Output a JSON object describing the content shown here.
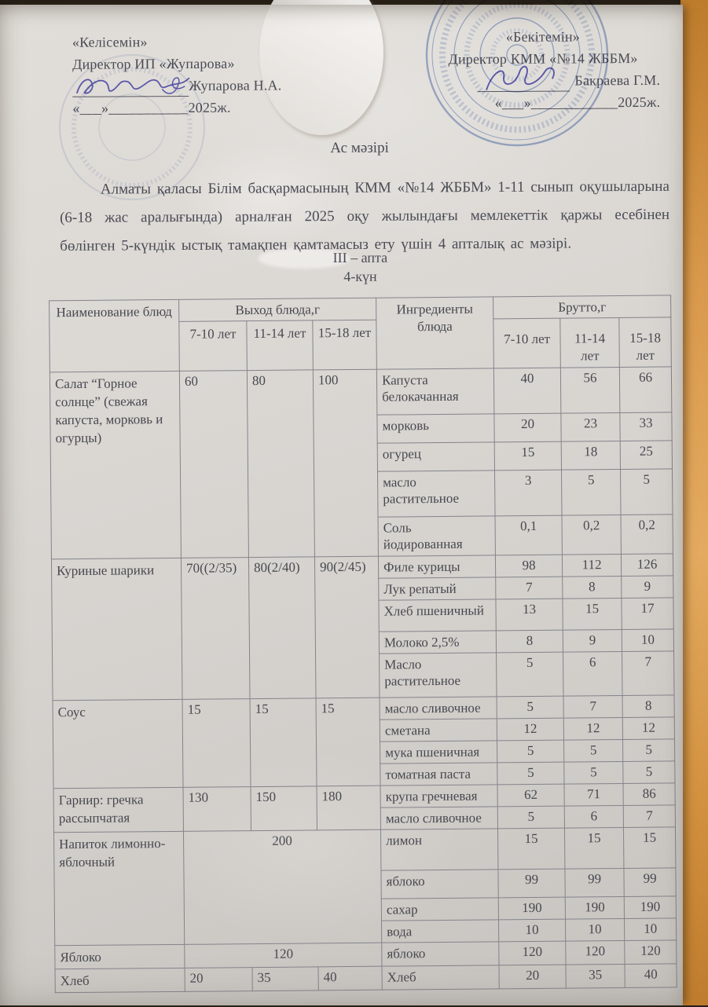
{
  "approval_left": {
    "quote": "«Келісемін»",
    "role": "Директор ИП «Жупарова»",
    "signer": "Жупарова Н.А.",
    "date_line": "«___»___________2025ж."
  },
  "approval_right": {
    "quote": "«Бекітемін»",
    "role": "Директор КММ «№14 ЖББМ»",
    "signer": "Бакраева Г.М.",
    "date_line": "«___»____________2025ж."
  },
  "title": "Ас мәзірі",
  "intro": "Алматы қаласы Білім басқармасының КММ «№14 ЖББМ» 1-11 сынып оқушыларына (6-18 жас аралығында) арналған 2025 оқу жылындағы мемлекеттік қаржы есебінен бөлінген 5-күндік ыстық тамақпен қамтамасыз ету үшін 4 апталық ас мәзірі.",
  "week_label": "III – апта",
  "day_label": "4-күн",
  "menu_table": {
    "headers": {
      "dish": "Наименование блюд",
      "output_group": "Выход блюда,г",
      "ingredients": "Ингредиенты блюда",
      "brutto_group": "Брутто,г",
      "ages": [
        "7-10 лет",
        "11-14 лет",
        "15-18 лет"
      ]
    },
    "rows": [
      {
        "dish": "Салат “Горное солнце” (свежая капуста, морковь и огурцы)",
        "output": [
          "60",
          "80",
          "100"
        ],
        "ingredients": [
          {
            "name": "Капуста белокачанная",
            "brutto": [
              "40",
              "56",
              "66"
            ]
          },
          {
            "name": "морковь",
            "brutto": [
              "20",
              "23",
              "33"
            ]
          },
          {
            "name": "огурец",
            "brutto": [
              "15",
              "18",
              "25"
            ]
          },
          {
            "name": "масло растительное",
            "brutto": [
              "3",
              "5",
              "5"
            ]
          },
          {
            "name": "Соль йодированная",
            "brutto": [
              "0,1",
              "0,2",
              "0,2"
            ]
          }
        ]
      },
      {
        "dish": "Куриные шарики",
        "output": [
          "70((2/35)",
          "80(2/40)",
          "90(2/45)"
        ],
        "ingredients": [
          {
            "name": "Филе курицы",
            "brutto": [
              "98",
              "112",
              "126"
            ]
          },
          {
            "name": "Лук репатый",
            "brutto": [
              "7",
              "8",
              "9"
            ]
          },
          {
            "name": "Хлеб пшеничный",
            "brutto": [
              "13",
              "15",
              "17"
            ]
          },
          {
            "name": "Молоко 2,5%",
            "brutto": [
              "8",
              "9",
              "10"
            ]
          },
          {
            "name": "Масло растительное",
            "brutto": [
              "5",
              "6",
              "7"
            ]
          }
        ]
      },
      {
        "dish": "Соус",
        "output": [
          "15",
          "15",
          "15"
        ],
        "ingredients": [
          {
            "name": "масло сливочное",
            "brutto": [
              "5",
              "7",
              "8"
            ]
          },
          {
            "name": "сметана",
            "brutto": [
              "12",
              "12",
              "12"
            ]
          },
          {
            "name": "мука пшеничная",
            "brutto": [
              "5",
              "5",
              "5"
            ]
          },
          {
            "name": "томатная паста",
            "brutto": [
              "5",
              "5",
              "5"
            ]
          }
        ]
      },
      {
        "dish": "Гарнир: гречка рассыпчатая",
        "output": [
          "130",
          "150",
          "180"
        ],
        "ingredients": [
          {
            "name": "крупа гречневая",
            "brutto": [
              "62",
              "71",
              "86"
            ]
          },
          {
            "name": "масло сливочное",
            "brutto": [
              "5",
              "6",
              "7"
            ]
          }
        ]
      },
      {
        "dish": "Напиток лимонно-яблочный",
        "output_span": "200",
        "ingredients": [
          {
            "name": "лимон",
            "brutto": [
              "15",
              "15",
              "15"
            ]
          },
          {
            "name": "яблоко",
            "brutto": [
              "99",
              "99",
              "99"
            ]
          },
          {
            "name": "сахар",
            "brutto": [
              "190",
              "190",
              "190"
            ]
          },
          {
            "name": "вода",
            "brutto": [
              "10",
              "10",
              "10"
            ]
          }
        ]
      },
      {
        "dish": "Яблоко",
        "output_span": "120",
        "ingredients": [
          {
            "name": "яблоко",
            "brutto": [
              "120",
              "120",
              "120"
            ]
          }
        ]
      },
      {
        "dish": "Хлеб",
        "output": [
          "20",
          "35",
          "40"
        ],
        "ingredients": [
          {
            "name": "Хлеб",
            "brutto": [
              "20",
              "35",
              "40"
            ]
          }
        ]
      }
    ]
  },
  "colors": {
    "stamp_blue": "#5f7fc0",
    "ink_blue": "#5a57a8",
    "wood_background": "#d9994c",
    "paper": "#d9d6d2"
  }
}
